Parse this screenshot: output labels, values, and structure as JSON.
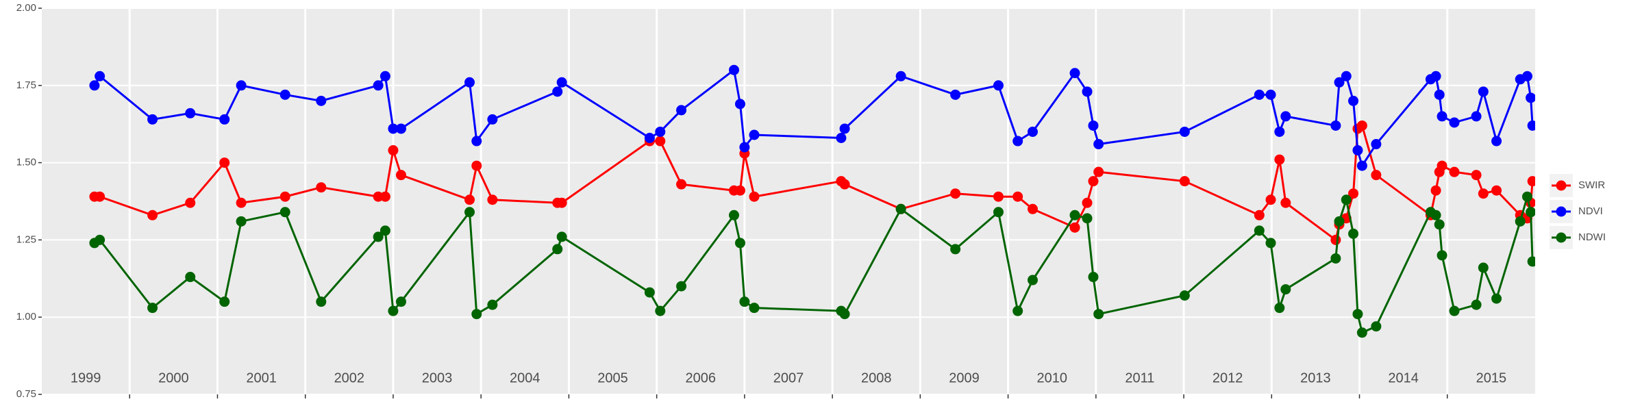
{
  "chart_data": {
    "type": "line",
    "x": [
      1999.6,
      1999.66,
      2000.26,
      2000.69,
      2001.08,
      2001.27,
      2001.77,
      2002.18,
      2002.83,
      2002.91,
      2003.0,
      2003.09,
      2003.87,
      2003.95,
      2004.13,
      2004.87,
      2004.92,
      2005.92,
      2006.04,
      2006.28,
      2006.88,
      2006.95,
      2007.0,
      2007.11,
      2008.1,
      2008.14,
      2008.78,
      2009.4,
      2009.89,
      2010.11,
      2010.28,
      2010.76,
      2010.9,
      2010.97,
      2011.03,
      2012.01,
      2012.86,
      2012.99,
      2013.09,
      2013.16,
      2013.73,
      2013.77,
      2013.85,
      2013.93,
      2013.98,
      2014.03,
      2014.19,
      2014.81,
      2014.87,
      2014.91,
      2014.94,
      2015.08,
      2015.33,
      2015.41,
      2015.56,
      2015.83,
      2015.91,
      2015.95,
      2015.97
    ],
    "series": [
      {
        "name": "SWIR",
        "color": "#ff0000",
        "values": [
          1.39,
          1.39,
          1.33,
          1.37,
          1.5,
          1.37,
          1.39,
          1.42,
          1.39,
          1.39,
          1.54,
          1.46,
          1.38,
          1.49,
          1.38,
          1.37,
          1.37,
          1.57,
          1.57,
          1.43,
          1.41,
          1.41,
          1.53,
          1.39,
          1.44,
          1.43,
          1.35,
          1.4,
          1.39,
          1.39,
          1.35,
          1.29,
          1.37,
          1.44,
          1.47,
          1.44,
          1.33,
          1.38,
          1.51,
          1.37,
          1.25,
          1.3,
          1.32,
          1.4,
          1.61,
          1.62,
          1.46,
          1.33,
          1.41,
          1.47,
          1.49,
          1.47,
          1.46,
          1.4,
          1.41,
          1.33,
          1.32,
          1.37,
          1.44
        ]
      },
      {
        "name": "NDVI",
        "color": "#0000ff",
        "values": [
          1.75,
          1.78,
          1.64,
          1.66,
          1.64,
          1.75,
          1.72,
          1.7,
          1.75,
          1.78,
          1.61,
          1.61,
          1.76,
          1.57,
          1.64,
          1.73,
          1.76,
          1.58,
          1.6,
          1.67,
          1.8,
          1.69,
          1.55,
          1.59,
          1.58,
          1.61,
          1.78,
          1.72,
          1.75,
          1.57,
          1.6,
          1.79,
          1.73,
          1.62,
          1.56,
          1.6,
          1.72,
          1.72,
          1.6,
          1.65,
          1.62,
          1.76,
          1.78,
          1.7,
          1.54,
          1.49,
          1.56,
          1.77,
          1.78,
          1.72,
          1.65,
          1.63,
          1.65,
          1.73,
          1.57,
          1.77,
          1.78,
          1.71,
          1.62
        ]
      },
      {
        "name": "NDWI",
        "color": "#006400",
        "values": [
          1.24,
          1.25,
          1.03,
          1.13,
          1.05,
          1.31,
          1.34,
          1.05,
          1.26,
          1.28,
          1.02,
          1.05,
          1.34,
          1.01,
          1.04,
          1.22,
          1.26,
          1.08,
          1.02,
          1.1,
          1.33,
          1.24,
          1.05,
          1.03,
          1.02,
          1.01,
          1.35,
          1.22,
          1.34,
          1.02,
          1.12,
          1.33,
          1.32,
          1.13,
          1.01,
          1.07,
          1.28,
          1.24,
          1.03,
          1.09,
          1.19,
          1.31,
          1.38,
          1.27,
          1.01,
          0.95,
          0.97,
          1.34,
          1.33,
          1.3,
          1.2,
          1.02,
          1.04,
          1.16,
          1.06,
          1.31,
          1.39,
          1.34,
          1.18
        ]
      }
    ],
    "xlim": [
      1999.0,
      2016.0
    ],
    "xticks": [
      {
        "value": 1999,
        "label": "1999"
      },
      {
        "value": 2000,
        "label": "2000"
      },
      {
        "value": 2001,
        "label": "2001"
      },
      {
        "value": 2002,
        "label": "2002"
      },
      {
        "value": 2003,
        "label": "2003"
      },
      {
        "value": 2004,
        "label": "2004"
      },
      {
        "value": 2005,
        "label": "2005"
      },
      {
        "value": 2006,
        "label": "2006"
      },
      {
        "value": 2007,
        "label": "2007"
      },
      {
        "value": 2008,
        "label": "2008"
      },
      {
        "value": 2009,
        "label": "2009"
      },
      {
        "value": 2010,
        "label": "2010"
      },
      {
        "value": 2011,
        "label": "2011"
      },
      {
        "value": 2012,
        "label": "2012"
      },
      {
        "value": 2013,
        "label": "2013"
      },
      {
        "value": 2014,
        "label": "2014"
      },
      {
        "value": 2015,
        "label": "2015"
      }
    ],
    "ylim": [
      0.75,
      2.0
    ],
    "yticks": [
      {
        "value": 0.75,
        "label": "0.75"
      },
      {
        "value": 1.0,
        "label": "1.00"
      },
      {
        "value": 1.25,
        "label": "1.25"
      },
      {
        "value": 1.5,
        "label": "1.50"
      },
      {
        "value": 1.75,
        "label": "1.75"
      },
      {
        "value": 2.0,
        "label": "2.00"
      }
    ],
    "grid": true,
    "legend": "right"
  }
}
